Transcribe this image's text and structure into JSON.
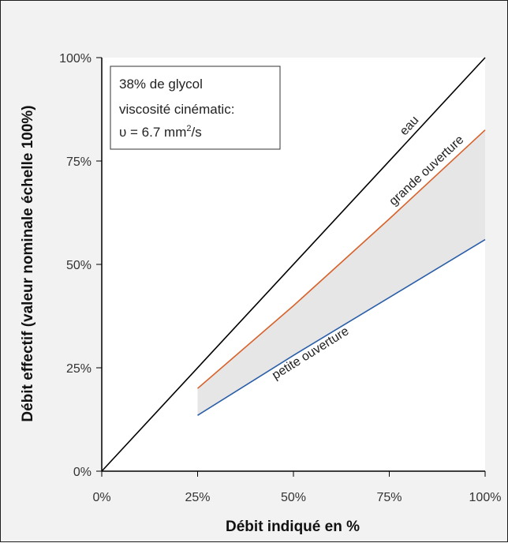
{
  "chart_data": {
    "type": "line",
    "xlabel": "Débit indiqué en %",
    "ylabel": "Débit effectif (valeur nominale échelle 100%)",
    "xlim": [
      0,
      100
    ],
    "ylim": [
      0,
      100
    ],
    "x_ticks": [
      "0%",
      "25%",
      "50%",
      "75%",
      "100%"
    ],
    "y_ticks": [
      "0%",
      "25%",
      "50%",
      "75%",
      "100%"
    ],
    "annotation": {
      "line1": "38% de glycol",
      "line2": "viscosité cinématic:",
      "line3_prefix": "υ = 6.7 mm",
      "line3_sup": "2",
      "line3_suffix": "/s"
    },
    "series": [
      {
        "name": "eau",
        "color": "#000000",
        "x": [
          0,
          100
        ],
        "y": [
          0,
          100
        ]
      },
      {
        "name": "grande ouverture",
        "color": "#d9622b",
        "x": [
          25,
          50,
          75,
          100
        ],
        "y": [
          20,
          40,
          61,
          82.5
        ]
      },
      {
        "name": "petite ouverture",
        "color": "#2a5ea8",
        "x": [
          25,
          50,
          75,
          100
        ],
        "y": [
          13.5,
          28,
          42,
          56
        ]
      }
    ],
    "shaded_band": {
      "between": [
        "petite ouverture",
        "grande ouverture"
      ],
      "color": "#e6e6e6"
    },
    "grid": false
  }
}
